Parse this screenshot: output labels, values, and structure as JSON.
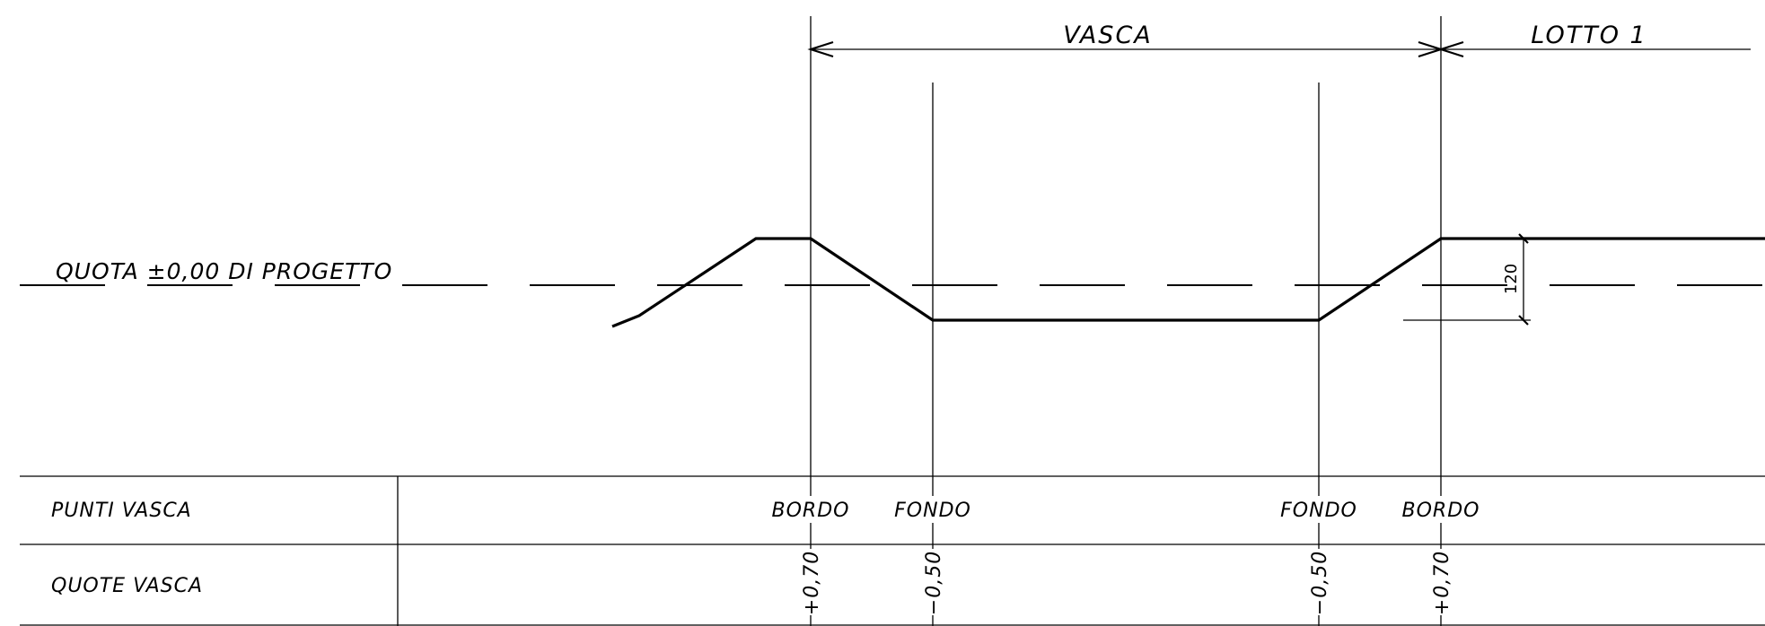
{
  "labels": {
    "vasca": "VASCA",
    "lotto": "LOTTO 1",
    "quota": "QUOTA ±0,00 DI PROGETTO",
    "dimension": "120"
  },
  "table": {
    "rows": [
      {
        "header": "PUNTI VASCA"
      },
      {
        "header": "QUOTE VASCA"
      }
    ],
    "points": [
      {
        "name": "BORDO",
        "quota": "+0,70"
      },
      {
        "name": "FONDO",
        "quota": "−0,50"
      },
      {
        "name": "FONDO",
        "quota": "−0,50"
      },
      {
        "name": "BORDO",
        "quota": "+0,70"
      }
    ]
  }
}
